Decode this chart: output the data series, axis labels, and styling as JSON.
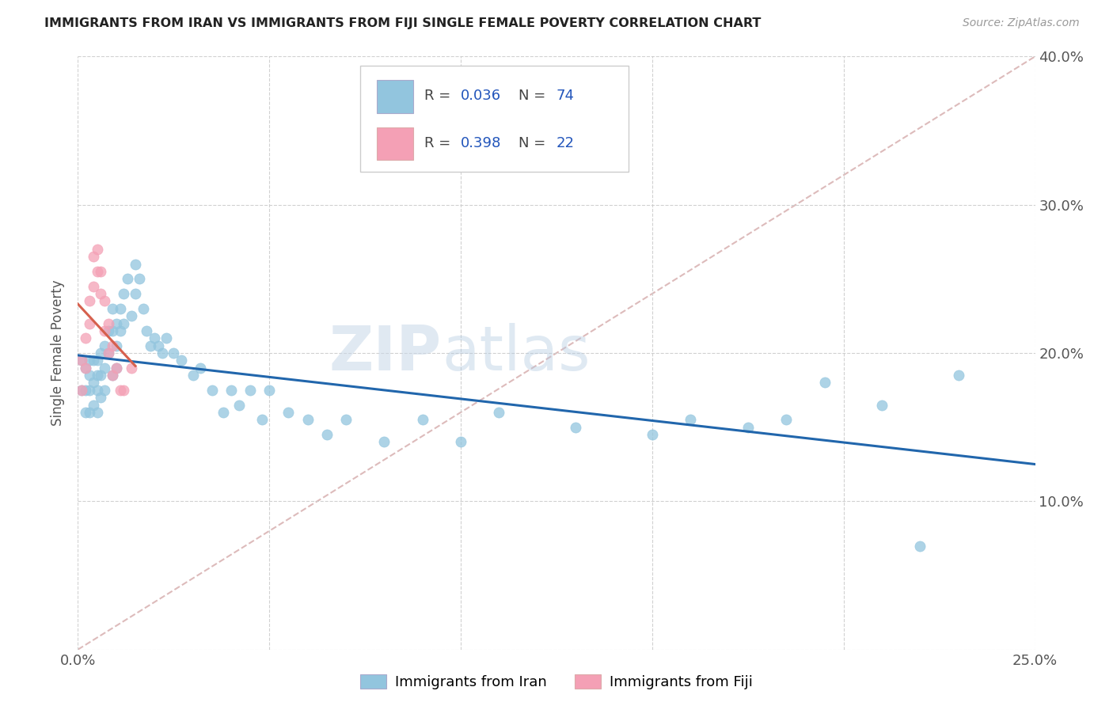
{
  "title": "IMMIGRANTS FROM IRAN VS IMMIGRANTS FROM FIJI SINGLE FEMALE POVERTY CORRELATION CHART",
  "source": "Source: ZipAtlas.com",
  "ylabel_label": "Single Female Poverty",
  "xlim": [
    0.0,
    0.25
  ],
  "ylim": [
    0.0,
    0.4
  ],
  "iran_color": "#92c5de",
  "fiji_color": "#f4a0b5",
  "iran_line_color": "#2166ac",
  "fiji_line_color": "#d6604d",
  "diag_color": "#ddbbbb",
  "iran_R": "0.036",
  "iran_N": "74",
  "fiji_R": "0.398",
  "fiji_N": "22",
  "watermark_zip": "ZIP",
  "watermark_atlas": "atlas",
  "legend_iran": "Immigrants from Iran",
  "legend_fiji": "Immigrants from Fiji",
  "iran_scatter_x": [
    0.001,
    0.001,
    0.002,
    0.002,
    0.002,
    0.003,
    0.003,
    0.003,
    0.003,
    0.004,
    0.004,
    0.004,
    0.005,
    0.005,
    0.005,
    0.005,
    0.006,
    0.006,
    0.006,
    0.007,
    0.007,
    0.007,
    0.008,
    0.008,
    0.009,
    0.009,
    0.009,
    0.01,
    0.01,
    0.01,
    0.011,
    0.011,
    0.012,
    0.012,
    0.013,
    0.014,
    0.015,
    0.015,
    0.016,
    0.017,
    0.018,
    0.019,
    0.02,
    0.021,
    0.022,
    0.023,
    0.025,
    0.027,
    0.03,
    0.032,
    0.035,
    0.038,
    0.04,
    0.042,
    0.045,
    0.048,
    0.05,
    0.055,
    0.06,
    0.065,
    0.07,
    0.08,
    0.09,
    0.1,
    0.11,
    0.13,
    0.15,
    0.16,
    0.175,
    0.185,
    0.195,
    0.21,
    0.22,
    0.23
  ],
  "iran_scatter_y": [
    0.195,
    0.175,
    0.19,
    0.175,
    0.16,
    0.195,
    0.185,
    0.175,
    0.16,
    0.195,
    0.18,
    0.165,
    0.195,
    0.185,
    0.175,
    0.16,
    0.2,
    0.185,
    0.17,
    0.205,
    0.19,
    0.175,
    0.215,
    0.2,
    0.23,
    0.215,
    0.185,
    0.22,
    0.205,
    0.19,
    0.23,
    0.215,
    0.24,
    0.22,
    0.25,
    0.225,
    0.26,
    0.24,
    0.25,
    0.23,
    0.215,
    0.205,
    0.21,
    0.205,
    0.2,
    0.21,
    0.2,
    0.195,
    0.185,
    0.19,
    0.175,
    0.16,
    0.175,
    0.165,
    0.175,
    0.155,
    0.175,
    0.16,
    0.155,
    0.145,
    0.155,
    0.14,
    0.155,
    0.14,
    0.16,
    0.15,
    0.145,
    0.155,
    0.15,
    0.155,
    0.18,
    0.165,
    0.07,
    0.185
  ],
  "fiji_scatter_x": [
    0.001,
    0.001,
    0.002,
    0.002,
    0.003,
    0.003,
    0.004,
    0.004,
    0.005,
    0.005,
    0.006,
    0.006,
    0.007,
    0.007,
    0.008,
    0.008,
    0.009,
    0.009,
    0.01,
    0.011,
    0.012,
    0.014
  ],
  "fiji_scatter_y": [
    0.195,
    0.175,
    0.21,
    0.19,
    0.235,
    0.22,
    0.265,
    0.245,
    0.27,
    0.255,
    0.255,
    0.24,
    0.235,
    0.215,
    0.22,
    0.2,
    0.205,
    0.185,
    0.19,
    0.175,
    0.175,
    0.19
  ]
}
